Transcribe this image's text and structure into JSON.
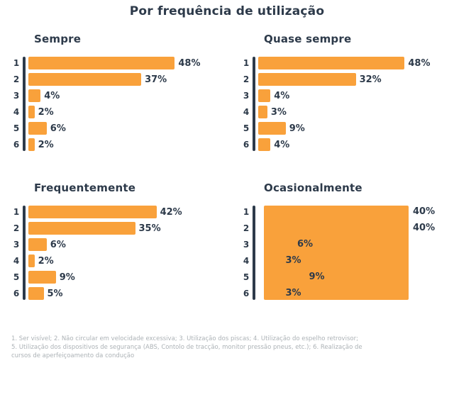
{
  "page": {
    "title": "Por frequência de utilização",
    "footnotes": [
      "1. Ser visível; 2. Não circular em velocidade excessiva; 3. Utilização dos piscas; 4. Utilização do espelho retrovisor;",
      "5. Utilização dos dispositivos de segurança (ABS, Contolo de tracção, monitor pressão pneus, etc.); 6. Realização de",
      "cursos de aperfeiçoamento da condução"
    ]
  },
  "colors": {
    "bar": "#F9A13B",
    "text": "#2D3A4A",
    "axis": "#2D3A4A",
    "footnote": "#ACB2B6",
    "background": "#FFFFFF"
  },
  "chart_data": [
    {
      "type": "bar",
      "orientation": "horizontal",
      "title": "Sempre",
      "categories": [
        "1",
        "2",
        "3",
        "4",
        "5",
        "6"
      ],
      "values": [
        48,
        37,
        4,
        2,
        6,
        2
      ],
      "unit": "%",
      "xlim": [
        0,
        50
      ],
      "grid": false,
      "legend": false
    },
    {
      "type": "bar",
      "orientation": "horizontal",
      "title": "Quase sempre",
      "categories": [
        "1",
        "2",
        "3",
        "4",
        "5",
        "6"
      ],
      "values": [
        48,
        32,
        4,
        3,
        9,
        4
      ],
      "unit": "%",
      "xlim": [
        0,
        50
      ],
      "grid": false,
      "legend": false
    },
    {
      "type": "bar",
      "orientation": "horizontal",
      "title": "Frequentemente",
      "categories": [
        "1",
        "2",
        "3",
        "4",
        "5",
        "6"
      ],
      "values": [
        42,
        35,
        6,
        2,
        9,
        5
      ],
      "unit": "%",
      "xlim": [
        0,
        50
      ],
      "grid": false,
      "legend": false
    },
    {
      "type": "bar",
      "orientation": "horizontal",
      "title": "Ocasionalmente",
      "categories": [
        "1",
        "2",
        "3",
        "4",
        "5",
        "6"
      ],
      "values": [
        40,
        40,
        6,
        3,
        9,
        3
      ],
      "unit": "%",
      "xlim": [
        0,
        50
      ],
      "grid": false,
      "legend": false,
      "render": "solid-block"
    }
  ]
}
